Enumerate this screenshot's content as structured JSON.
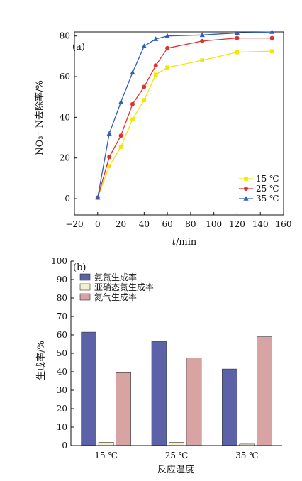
{
  "chart_data": [
    {
      "type": "line",
      "panel_label": "(a)",
      "title": "",
      "xlabel_italic": "t",
      "xlabel_unit": "/min",
      "ylabel": "NO₃⁻-N去除率/%",
      "xlim": [
        -20,
        160
      ],
      "ylim": [
        -8,
        82
      ],
      "xticks": [
        -20,
        0,
        20,
        40,
        60,
        80,
        100,
        120,
        140,
        160
      ],
      "yticks": [
        0,
        20,
        40,
        60,
        80
      ],
      "legend_position": "right",
      "series": [
        {
          "name": "15 ℃",
          "color": "#f2e600",
          "marker": "square",
          "x": [
            0,
            10,
            20,
            30,
            40,
            50,
            60,
            90,
            120,
            150
          ],
          "y": [
            0.5,
            16,
            25.5,
            39,
            48.5,
            61,
            64.5,
            68,
            72,
            72.5
          ]
        },
        {
          "name": "25 ℃",
          "color": "#e03030",
          "marker": "circle",
          "x": [
            0,
            10,
            20,
            30,
            40,
            50,
            60,
            90,
            120,
            150
          ],
          "y": [
            0.5,
            20.5,
            31,
            46.5,
            55,
            65.5,
            74,
            77.5,
            79,
            79
          ]
        },
        {
          "name": "35 ℃",
          "color": "#2f5fb8",
          "marker": "triangle",
          "x": [
            0,
            10,
            20,
            30,
            40,
            50,
            60,
            90,
            120,
            150
          ],
          "y": [
            0.5,
            32,
            47.5,
            62,
            75,
            78.5,
            80,
            80.5,
            81.5,
            82
          ]
        }
      ]
    },
    {
      "type": "bar",
      "panel_label": "(b)",
      "title": "",
      "xlabel": "反应温度",
      "ylabel": "生成率/%",
      "ylim": [
        0,
        100
      ],
      "yticks": [
        0,
        10,
        20,
        30,
        40,
        50,
        60,
        70,
        80,
        90,
        100
      ],
      "categories": [
        "15 ℃",
        "25 ℃",
        "35 ℃"
      ],
      "legend_position": "top-left",
      "series": [
        {
          "name": "氨氮生成率",
          "color": "#5b62a8",
          "values": [
            61.5,
            56.5,
            41.5
          ]
        },
        {
          "name": "亚硝态氮生成率",
          "color": "#f3f0cf",
          "values": [
            1.8,
            1.8,
            0.8
          ]
        },
        {
          "name": "氮气生成率",
          "color": "#d7a3a3",
          "values": [
            39.5,
            47.5,
            59
          ]
        }
      ]
    }
  ]
}
